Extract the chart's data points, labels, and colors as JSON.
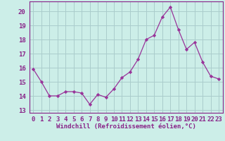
{
  "x": [
    0,
    1,
    2,
    3,
    4,
    5,
    6,
    7,
    8,
    9,
    10,
    11,
    12,
    13,
    14,
    15,
    16,
    17,
    18,
    19,
    20,
    21,
    22,
    23
  ],
  "y": [
    15.9,
    15.0,
    14.0,
    14.0,
    14.3,
    14.3,
    14.2,
    13.4,
    14.1,
    13.9,
    14.5,
    15.3,
    15.7,
    16.6,
    18.0,
    18.3,
    19.6,
    20.3,
    18.7,
    17.3,
    17.8,
    16.4,
    15.4,
    15.2
  ],
  "line_color": "#993399",
  "marker": "D",
  "marker_size": 2.2,
  "bg_color": "#cceee8",
  "grid_color": "#aacccc",
  "xlabel": "Windchill (Refroidissement éolien,°C)",
  "ylabel_ticks": [
    13,
    14,
    15,
    16,
    17,
    18,
    19,
    20
  ],
  "xlim": [
    -0.5,
    23.5
  ],
  "ylim": [
    12.8,
    20.7
  ],
  "xlabel_fontsize": 6.5,
  "tick_fontsize": 6.5,
  "label_color": "#882288"
}
